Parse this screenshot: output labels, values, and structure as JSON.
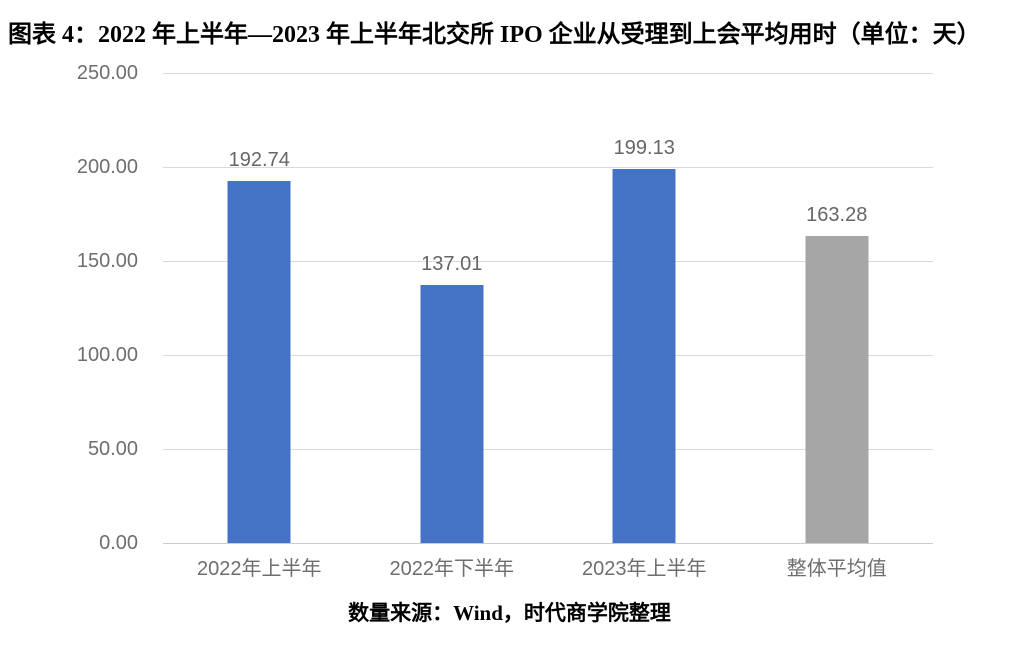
{
  "page": {
    "title": "图表 4：2022 年上半年—2023 年上半年北交所 IPO 企业从受理到上会平均用时（单位：天）",
    "source_note": "数量来源：Wind，时代商学院整理"
  },
  "chart_data": {
    "type": "bar",
    "title": "图表 4：2022 年上半年—2023 年上半年北交所 IPO 企业从受理到上会平均用时（单位：天）",
    "categories": [
      "2022年上半年",
      "2022年下半年",
      "2023年上半年",
      "整体平均值"
    ],
    "values": [
      192.74,
      137.01,
      199.13,
      163.28
    ],
    "value_labels": [
      "192.74",
      "137.01",
      "199.13",
      "163.28"
    ],
    "bar_colors": [
      "#4472c4",
      "#4472c4",
      "#4472c4",
      "#a6a6a6"
    ],
    "ylim": [
      0,
      250
    ],
    "ytick_interval": 50,
    "ytick_labels": [
      "250.00",
      "200.00",
      "150.00",
      "100.00",
      "50.00",
      "0.00"
    ],
    "grid": true,
    "legend": false,
    "xlabel": "",
    "ylabel": "",
    "source": "数量来源：Wind，时代商学院整理"
  },
  "colors": {
    "bar_blue": "#4472c4",
    "bar_gray": "#a6a6a6",
    "axis_text": "#6e6e6e",
    "gridline": "#d9d9d9",
    "title_text": "#000000"
  }
}
